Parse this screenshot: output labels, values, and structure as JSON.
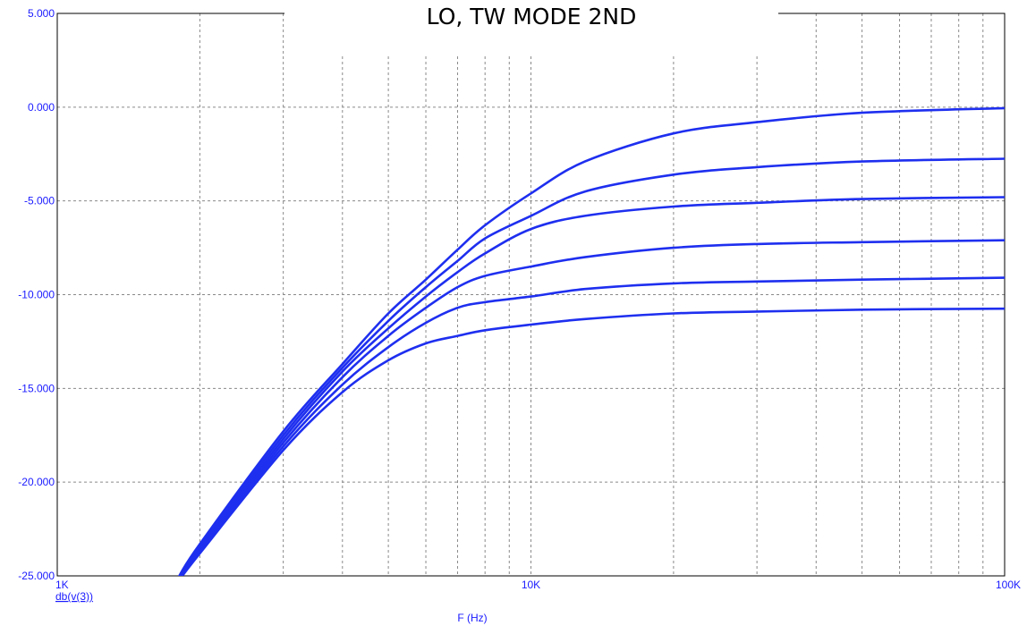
{
  "chart_data": {
    "type": "line",
    "title": "LO, TW MODE 2ND",
    "xlabel": "F (Hz)",
    "trace_label": "db(v(3))",
    "x_scale": "log",
    "xlim": [
      1000,
      100000
    ],
    "ylim": [
      -25,
      5
    ],
    "grid": true,
    "grid_style": "dotted",
    "x_ticks": [
      {
        "value": 1000,
        "label": "1K"
      },
      {
        "value": 10000,
        "label": "10K"
      },
      {
        "value": 100000,
        "label": "100K"
      }
    ],
    "y_ticks": [
      {
        "value": 5,
        "label": "5.000"
      },
      {
        "value": 0,
        "label": "0.000"
      },
      {
        "value": -5,
        "label": "-5.000"
      },
      {
        "value": -10,
        "label": "-10.000"
      },
      {
        "value": -15,
        "label": "-15.000"
      },
      {
        "value": -20,
        "label": "-20.000"
      },
      {
        "value": -25,
        "label": "-25.000"
      }
    ],
    "x": [
      1800,
      2000,
      3000,
      4000,
      5000,
      6000,
      7000,
      8000,
      10000,
      13000,
      20000,
      30000,
      50000,
      100000
    ],
    "series": [
      {
        "values": [
          -25.1,
          -23.3,
          -17.3,
          -13.7,
          -11.0,
          -9.2,
          -7.6,
          -6.3,
          -4.6,
          -2.9,
          -1.4,
          -0.8,
          -0.3,
          -0.05
        ]
      },
      {
        "values": [
          -25.1,
          -23.4,
          -17.5,
          -13.9,
          -11.4,
          -9.6,
          -8.2,
          -7.0,
          -5.8,
          -4.5,
          -3.6,
          -3.2,
          -2.9,
          -2.75
        ]
      },
      {
        "values": [
          -25.1,
          -23.5,
          -17.7,
          -14.1,
          -11.8,
          -10.1,
          -8.8,
          -7.8,
          -6.5,
          -5.8,
          -5.3,
          -5.1,
          -4.9,
          -4.8
        ]
      },
      {
        "values": [
          -25.2,
          -23.6,
          -17.9,
          -14.4,
          -12.2,
          -10.7,
          -9.6,
          -9.0,
          -8.5,
          -8.0,
          -7.5,
          -7.3,
          -7.2,
          -7.1
        ]
      },
      {
        "values": [
          -25.2,
          -23.7,
          -18.1,
          -14.8,
          -12.8,
          -11.5,
          -10.7,
          -10.4,
          -10.1,
          -9.7,
          -9.4,
          -9.3,
          -9.2,
          -9.1
        ]
      },
      {
        "values": [
          -25.3,
          -23.8,
          -18.3,
          -15.2,
          -13.5,
          -12.6,
          -12.2,
          -11.9,
          -11.6,
          -11.3,
          -11.0,
          -10.9,
          -10.8,
          -10.75
        ]
      }
    ],
    "line_color": "#1e2fef",
    "grid_color": "#8a8a8a",
    "text_color": "#1a1aff"
  }
}
